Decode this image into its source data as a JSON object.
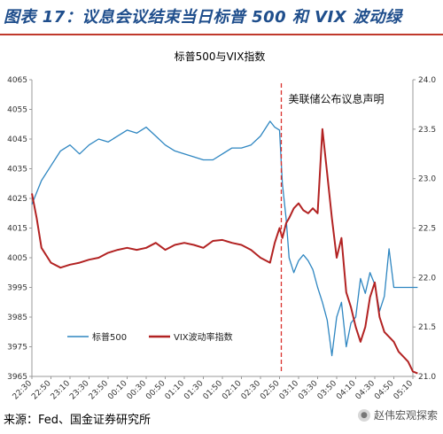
{
  "header": {
    "title": "图表 17：议息会议结束当日标普 500 和 VIX 波动绿"
  },
  "footer": {
    "source": "来源：Fed、国金证券研究所",
    "watermark": "赵伟宏观探索"
  },
  "colors": {
    "spx": "#2e86c1",
    "vix": "#b22222",
    "title": "#1f4e8c",
    "rule": "#c0392b",
    "marker": "#d9302c"
  },
  "chart_data": {
    "type": "line",
    "title": "标普500与VIX指数",
    "annotation": {
      "text": "美联储公布议息声明",
      "x": "02:50"
    },
    "y_left": {
      "min": 3965,
      "max": 4065,
      "ticks": [
        3965,
        3975,
        3985,
        3995,
        4005,
        4015,
        4025,
        4035,
        4045,
        4055,
        4065
      ]
    },
    "y_right": {
      "min": 21.0,
      "max": 24.0,
      "ticks": [
        "21.0",
        "21.5",
        "22.0",
        "22.5",
        "23.0",
        "23.5",
        "24.0"
      ]
    },
    "x_ticks": [
      "22:30",
      "22:50",
      "23:10",
      "23:30",
      "23:50",
      "00:10",
      "00:30",
      "00:50",
      "01:10",
      "01:30",
      "01:50",
      "02:10",
      "02:30",
      "02:50",
      "03:10",
      "03:30",
      "03:50",
      "04:10",
      "04:30",
      "04:50",
      "05:10"
    ],
    "grid": false,
    "legend_position": "bottom-left",
    "series": [
      {
        "name": "标普500",
        "axis": "left",
        "x": [
          "22:30",
          "22:35",
          "22:40",
          "22:50",
          "23:00",
          "23:10",
          "23:20",
          "23:30",
          "23:40",
          "23:50",
          "00:00",
          "00:10",
          "00:20",
          "00:30",
          "00:40",
          "00:50",
          "01:00",
          "01:10",
          "01:20",
          "01:30",
          "01:40",
          "01:50",
          "02:00",
          "02:10",
          "02:20",
          "02:30",
          "02:40",
          "02:45",
          "02:50",
          "02:53",
          "02:57",
          "03:00",
          "03:05",
          "03:10",
          "03:15",
          "03:20",
          "03:25",
          "03:30",
          "03:35",
          "03:40",
          "03:45",
          "03:50",
          "03:55",
          "04:00",
          "04:05",
          "04:10",
          "04:15",
          "04:20",
          "04:25",
          "04:30",
          "04:35",
          "04:40",
          "04:45",
          "04:50",
          "04:55",
          "05:00",
          "05:05",
          "05:10",
          "05:15"
        ],
        "values": [
          4023,
          4027,
          4031,
          4036,
          4041,
          4043,
          4040,
          4043,
          4045,
          4044,
          4046,
          4048,
          4047,
          4049,
          4046,
          4043,
          4041,
          4040,
          4039,
          4038,
          4038,
          4040,
          4042,
          4042,
          4043,
          4046,
          4051,
          4049,
          4048,
          4030,
          4018,
          4005,
          4000,
          4004,
          4006,
          4004,
          4001,
          3995,
          3990,
          3984,
          3972,
          3985,
          3990,
          3975,
          3983,
          3985,
          3998,
          3993,
          4000,
          3996,
          3987,
          3992,
          4008,
          3995,
          3995,
          3995,
          3995,
          3995,
          3995
        ]
      },
      {
        "name": "VIX波动率指数",
        "axis": "right",
        "x": [
          "22:30",
          "22:35",
          "22:40",
          "22:50",
          "23:00",
          "23:10",
          "23:20",
          "23:30",
          "23:40",
          "23:50",
          "00:00",
          "00:10",
          "00:20",
          "00:30",
          "00:40",
          "00:50",
          "01:00",
          "01:10",
          "01:20",
          "01:30",
          "01:40",
          "01:50",
          "02:00",
          "02:10",
          "02:20",
          "02:30",
          "02:40",
          "02:45",
          "02:50",
          "02:53",
          "02:57",
          "03:00",
          "03:05",
          "03:10",
          "03:15",
          "03:20",
          "03:25",
          "03:30",
          "03:35",
          "03:40",
          "03:45",
          "03:50",
          "03:55",
          "04:00",
          "04:05",
          "04:10",
          "04:15",
          "04:20",
          "04:25",
          "04:30",
          "04:35",
          "04:40",
          "04:45",
          "04:50",
          "04:55",
          "05:00",
          "05:05",
          "05:10",
          "05:15"
        ],
        "values": [
          22.85,
          22.6,
          22.3,
          22.15,
          22.1,
          22.13,
          22.15,
          22.18,
          22.2,
          22.25,
          22.28,
          22.3,
          22.28,
          22.3,
          22.35,
          22.28,
          22.33,
          22.35,
          22.33,
          22.3,
          22.37,
          22.38,
          22.35,
          22.33,
          22.28,
          22.2,
          22.15,
          22.35,
          22.5,
          22.4,
          22.55,
          22.6,
          22.7,
          22.75,
          22.68,
          22.65,
          22.7,
          22.65,
          23.5,
          23.05,
          22.6,
          22.2,
          22.4,
          21.85,
          21.7,
          21.5,
          21.35,
          21.5,
          21.8,
          21.95,
          21.6,
          21.45,
          21.4,
          21.35,
          21.25,
          21.2,
          21.15,
          21.05,
          21.03
        ]
      }
    ]
  }
}
